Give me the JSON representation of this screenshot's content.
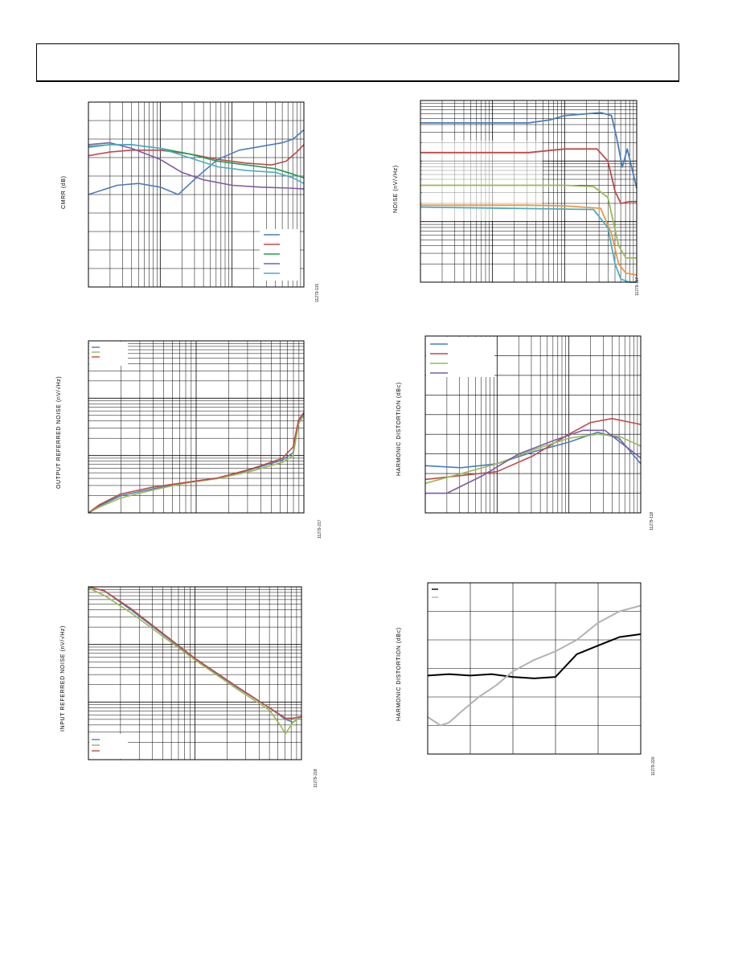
{
  "header": {
    "title": ""
  },
  "panels": [
    {
      "id": "cmrr",
      "ylabel": "CMRR (dB)",
      "figure_number": "11279-115"
    },
    {
      "id": "noise",
      "ylabel": "NOISE (nV/√Hz)",
      "figure_number": "11279-117"
    },
    {
      "id": "output_noise",
      "ylabel": "OUTPUT REFERRED NOISE (nV/√Hz)",
      "figure_number": "11279-217"
    },
    {
      "id": "hd_freq",
      "ylabel": "HARMONIC DISTORTION (dBc)",
      "figure_number": "11279-118"
    },
    {
      "id": "input_noise",
      "ylabel": "INPUT REFERRED NOISE (nV/√Hz)",
      "figure_number": "11279-218"
    },
    {
      "id": "hd_amp",
      "ylabel": "HARMONIC DISTORTION (dBc)",
      "figure_number": "11279-220"
    }
  ],
  "colors": {
    "blue": "#4a7ebb",
    "red": "#be4b48",
    "green": "#1f9d55",
    "purple": "#7d5ba6",
    "cyan": "#4bacc6",
    "lightgreen": "#98b954",
    "orange": "#f0953d",
    "black": "#000000",
    "gray": "#b3b3b3"
  },
  "chart_data": [
    {
      "type": "line",
      "ylabel": "CMRR (dB)",
      "xscale": "log",
      "x_decades": 3,
      "y_divisions": 10,
      "ylim": [
        0,
        10
      ],
      "legend": "bottom-right",
      "series": [
        {
          "color": "blue",
          "points": [
            [
              0,
              5.0
            ],
            [
              0.4,
              5.5
            ],
            [
              0.7,
              5.6
            ],
            [
              1.0,
              5.4
            ],
            [
              1.25,
              5.0
            ],
            [
              1.5,
              5.9
            ],
            [
              1.8,
              6.9
            ],
            [
              2.1,
              7.4
            ],
            [
              2.4,
              7.6
            ],
            [
              2.7,
              7.8
            ],
            [
              2.85,
              8.0
            ],
            [
              3.0,
              8.5
            ]
          ]
        },
        {
          "color": "red",
          "points": [
            [
              0,
              7.1
            ],
            [
              0.3,
              7.3
            ],
            [
              0.6,
              7.4
            ],
            [
              1.0,
              7.4
            ],
            [
              1.4,
              7.2
            ],
            [
              1.8,
              6.9
            ],
            [
              2.2,
              6.7
            ],
            [
              2.55,
              6.6
            ],
            [
              2.75,
              6.8
            ],
            [
              2.9,
              7.3
            ],
            [
              3.0,
              7.7
            ]
          ]
        },
        {
          "color": "green",
          "points": [
            [
              0,
              7.6
            ],
            [
              0.3,
              7.7
            ],
            [
              0.6,
              7.7
            ],
            [
              1.0,
              7.5
            ],
            [
              1.4,
              7.2
            ],
            [
              1.8,
              6.8
            ],
            [
              2.2,
              6.6
            ],
            [
              2.6,
              6.4
            ],
            [
              2.85,
              6.1
            ],
            [
              3.0,
              5.9
            ]
          ]
        },
        {
          "color": "purple",
          "points": [
            [
              0,
              7.7
            ],
            [
              0.3,
              7.8
            ],
            [
              0.6,
              7.5
            ],
            [
              1.0,
              6.9
            ],
            [
              1.3,
              6.2
            ],
            [
              1.6,
              5.8
            ],
            [
              2.0,
              5.5
            ],
            [
              2.4,
              5.4
            ],
            [
              2.8,
              5.35
            ],
            [
              3.0,
              5.3
            ]
          ]
        },
        {
          "color": "cyan",
          "points": [
            [
              0,
              7.55
            ],
            [
              0.3,
              7.7
            ],
            [
              0.6,
              7.7
            ],
            [
              1.0,
              7.5
            ],
            [
              1.4,
              7.0
            ],
            [
              1.8,
              6.5
            ],
            [
              2.2,
              6.3
            ],
            [
              2.6,
              6.2
            ],
            [
              2.85,
              5.9
            ],
            [
              3.0,
              5.6
            ]
          ]
        }
      ]
    },
    {
      "type": "line",
      "ylabel": "NOISE (nV/√Hz)",
      "xscale": "log",
      "yscale": "log",
      "x_decades": 3,
      "y_decades": 3,
      "series": [
        {
          "color": "blue",
          "points": [
            [
              0,
              2.63
            ],
            [
              1.5,
              2.63
            ],
            [
              1.8,
              2.68
            ],
            [
              2.0,
              2.75
            ],
            [
              2.5,
              2.8
            ],
            [
              2.65,
              2.75
            ],
            [
              2.72,
              2.4
            ],
            [
              2.8,
              1.9
            ],
            [
              2.87,
              2.2
            ],
            [
              2.93,
              1.9
            ],
            [
              3.0,
              1.55
            ]
          ]
        },
        {
          "color": "red",
          "points": [
            [
              0,
              2.14
            ],
            [
              1.5,
              2.14
            ],
            [
              2.0,
              2.2
            ],
            [
              2.45,
              2.2
            ],
            [
              2.6,
              2.0
            ],
            [
              2.7,
              1.5
            ],
            [
              2.78,
              1.3
            ],
            [
              2.9,
              1.33
            ],
            [
              3.0,
              1.33
            ]
          ]
        },
        {
          "color": "lightgreen",
          "points": [
            [
              0,
              1.6
            ],
            [
              1.5,
              1.6
            ],
            [
              2.0,
              1.6
            ],
            [
              2.4,
              1.58
            ],
            [
              2.6,
              1.4
            ],
            [
              2.75,
              0.6
            ],
            [
              2.85,
              0.4
            ],
            [
              3.0,
              0.4
            ]
          ]
        },
        {
          "color": "orange",
          "points": [
            [
              0,
              1.27
            ],
            [
              1.5,
              1.27
            ],
            [
              2.0,
              1.26
            ],
            [
              2.5,
              1.22
            ],
            [
              2.65,
              0.8
            ],
            [
              2.75,
              0.3
            ],
            [
              2.85,
              0.15
            ],
            [
              3.0,
              0.12
            ]
          ]
        },
        {
          "color": "cyan",
          "points": [
            [
              0,
              1.24
            ],
            [
              2.4,
              1.2
            ],
            [
              2.6,
              0.9
            ],
            [
              2.7,
              0.3
            ],
            [
              2.78,
              0.05
            ],
            [
              2.9,
              0.0
            ],
            [
              3.0,
              0.0
            ]
          ]
        }
      ]
    },
    {
      "type": "line",
      "ylabel": "OUTPUT REFERRED NOISE (nV/√Hz)",
      "xscale": "log",
      "yscale": "log",
      "x_decades": 2,
      "y_decades": 3,
      "legend": "top-left",
      "series": [
        {
          "color": "blue",
          "points": [
            [
              0,
              0.0
            ],
            [
              0.1,
              0.12
            ],
            [
              0.3,
              0.3
            ],
            [
              0.6,
              0.42
            ],
            [
              0.9,
              0.52
            ],
            [
              1.2,
              0.6
            ],
            [
              1.5,
              0.75
            ],
            [
              1.8,
              0.92
            ],
            [
              1.9,
              1.05
            ],
            [
              1.95,
              1.6
            ],
            [
              2.0,
              1.74
            ]
          ]
        },
        {
          "color": "lightgreen",
          "points": [
            [
              0,
              0.0
            ],
            [
              0.1,
              0.1
            ],
            [
              0.3,
              0.26
            ],
            [
              0.6,
              0.4
            ],
            [
              0.9,
              0.52
            ],
            [
              1.2,
              0.6
            ],
            [
              1.5,
              0.72
            ],
            [
              1.8,
              0.88
            ],
            [
              1.9,
              1.0
            ],
            [
              1.95,
              1.55
            ],
            [
              2.0,
              1.7
            ]
          ]
        },
        {
          "color": "red",
          "points": [
            [
              0,
              0.0
            ],
            [
              0.1,
              0.14
            ],
            [
              0.3,
              0.33
            ],
            [
              0.6,
              0.45
            ],
            [
              0.9,
              0.53
            ],
            [
              1.2,
              0.61
            ],
            [
              1.5,
              0.76
            ],
            [
              1.8,
              0.95
            ],
            [
              1.9,
              1.15
            ],
            [
              1.95,
              1.62
            ],
            [
              2.0,
              1.75
            ]
          ]
        }
      ]
    },
    {
      "type": "line",
      "ylabel": "HARMONIC DISTORTION (dBc)",
      "xscale": "log",
      "x_decades": 3,
      "y_divisions": 9,
      "legend": "top-left",
      "series": [
        {
          "color": "blue",
          "points": [
            [
              0,
              2.4
            ],
            [
              0.5,
              2.3
            ],
            [
              1.0,
              2.5
            ],
            [
              1.5,
              3.1
            ],
            [
              2.0,
              3.6
            ],
            [
              2.4,
              4.1
            ],
            [
              2.7,
              3.8
            ],
            [
              3.0,
              2.5
            ]
          ]
        },
        {
          "color": "red",
          "points": [
            [
              0,
              1.7
            ],
            [
              0.5,
              1.9
            ],
            [
              1.0,
              2.1
            ],
            [
              1.5,
              2.9
            ],
            [
              2.0,
              4.0
            ],
            [
              2.3,
              4.6
            ],
            [
              2.6,
              4.8
            ],
            [
              3.0,
              4.5
            ]
          ]
        },
        {
          "color": "lightgreen",
          "points": [
            [
              0,
              1.5
            ],
            [
              0.5,
              2.0
            ],
            [
              1.0,
              2.5
            ],
            [
              1.5,
              3.2
            ],
            [
              2.0,
              3.8
            ],
            [
              2.4,
              4.0
            ],
            [
              2.7,
              3.9
            ],
            [
              3.0,
              3.4
            ]
          ]
        },
        {
          "color": "purple",
          "points": [
            [
              0,
              1.0
            ],
            [
              0.3,
              1.0
            ],
            [
              0.8,
              1.9
            ],
            [
              1.3,
              3.0
            ],
            [
              1.8,
              3.7
            ],
            [
              2.2,
              4.2
            ],
            [
              2.5,
              4.2
            ],
            [
              3.0,
              2.8
            ]
          ]
        }
      ]
    },
    {
      "type": "line",
      "ylabel": "INPUT REFERRED NOISE (nV/√Hz)",
      "xscale": "log",
      "yscale": "log",
      "x_decades": 2,
      "y_decades": 3,
      "legend": "bottom-left",
      "series": [
        {
          "color": "blue",
          "points": [
            [
              0,
              3.0
            ],
            [
              0.15,
              2.93
            ],
            [
              0.4,
              2.6
            ],
            [
              1.0,
              1.75
            ],
            [
              1.4,
              1.25
            ],
            [
              1.7,
              0.9
            ],
            [
              1.85,
              0.7
            ],
            [
              1.92,
              0.65
            ],
            [
              2.0,
              0.75
            ]
          ]
        },
        {
          "color": "lightgreen",
          "points": [
            [
              0,
              2.98
            ],
            [
              0.15,
              2.85
            ],
            [
              0.4,
              2.55
            ],
            [
              1.0,
              1.73
            ],
            [
              1.4,
              1.22
            ],
            [
              1.7,
              0.86
            ],
            [
              1.8,
              0.6
            ],
            [
              1.85,
              0.45
            ],
            [
              1.92,
              0.65
            ],
            [
              2.0,
              0.75
            ]
          ]
        },
        {
          "color": "red",
          "points": [
            [
              0,
              3.0
            ],
            [
              0.15,
              2.93
            ],
            [
              0.4,
              2.62
            ],
            [
              1.0,
              1.76
            ],
            [
              1.4,
              1.26
            ],
            [
              1.7,
              0.9
            ],
            [
              1.85,
              0.72
            ],
            [
              1.92,
              0.72
            ],
            [
              2.0,
              0.75
            ]
          ]
        }
      ]
    },
    {
      "type": "line",
      "ylabel": "HARMONIC DISTORTION (dBc)",
      "x_divisions": 5,
      "y_divisions": 6,
      "xlim": [
        0,
        5
      ],
      "ylim": [
        0,
        6
      ],
      "legend": "top-left",
      "series": [
        {
          "color": "black",
          "points": [
            [
              0,
              2.75
            ],
            [
              0.5,
              2.8
            ],
            [
              1.0,
              2.75
            ],
            [
              1.5,
              2.8
            ],
            [
              2.0,
              2.7
            ],
            [
              2.5,
              2.65
            ],
            [
              3.0,
              2.7
            ],
            [
              3.5,
              3.5
            ],
            [
              4.0,
              3.8
            ],
            [
              4.5,
              4.1
            ],
            [
              5.0,
              4.2
            ]
          ]
        },
        {
          "color": "gray",
          "points": [
            [
              0,
              1.3
            ],
            [
              0.3,
              1.0
            ],
            [
              0.5,
              1.1
            ],
            [
              0.8,
              1.5
            ],
            [
              1.2,
              2.0
            ],
            [
              1.6,
              2.4
            ],
            [
              2.0,
              2.9
            ],
            [
              2.5,
              3.3
            ],
            [
              3.0,
              3.6
            ],
            [
              3.5,
              4.0
            ],
            [
              4.0,
              4.6
            ],
            [
              4.5,
              5.0
            ],
            [
              5.0,
              5.2
            ]
          ]
        }
      ]
    }
  ]
}
